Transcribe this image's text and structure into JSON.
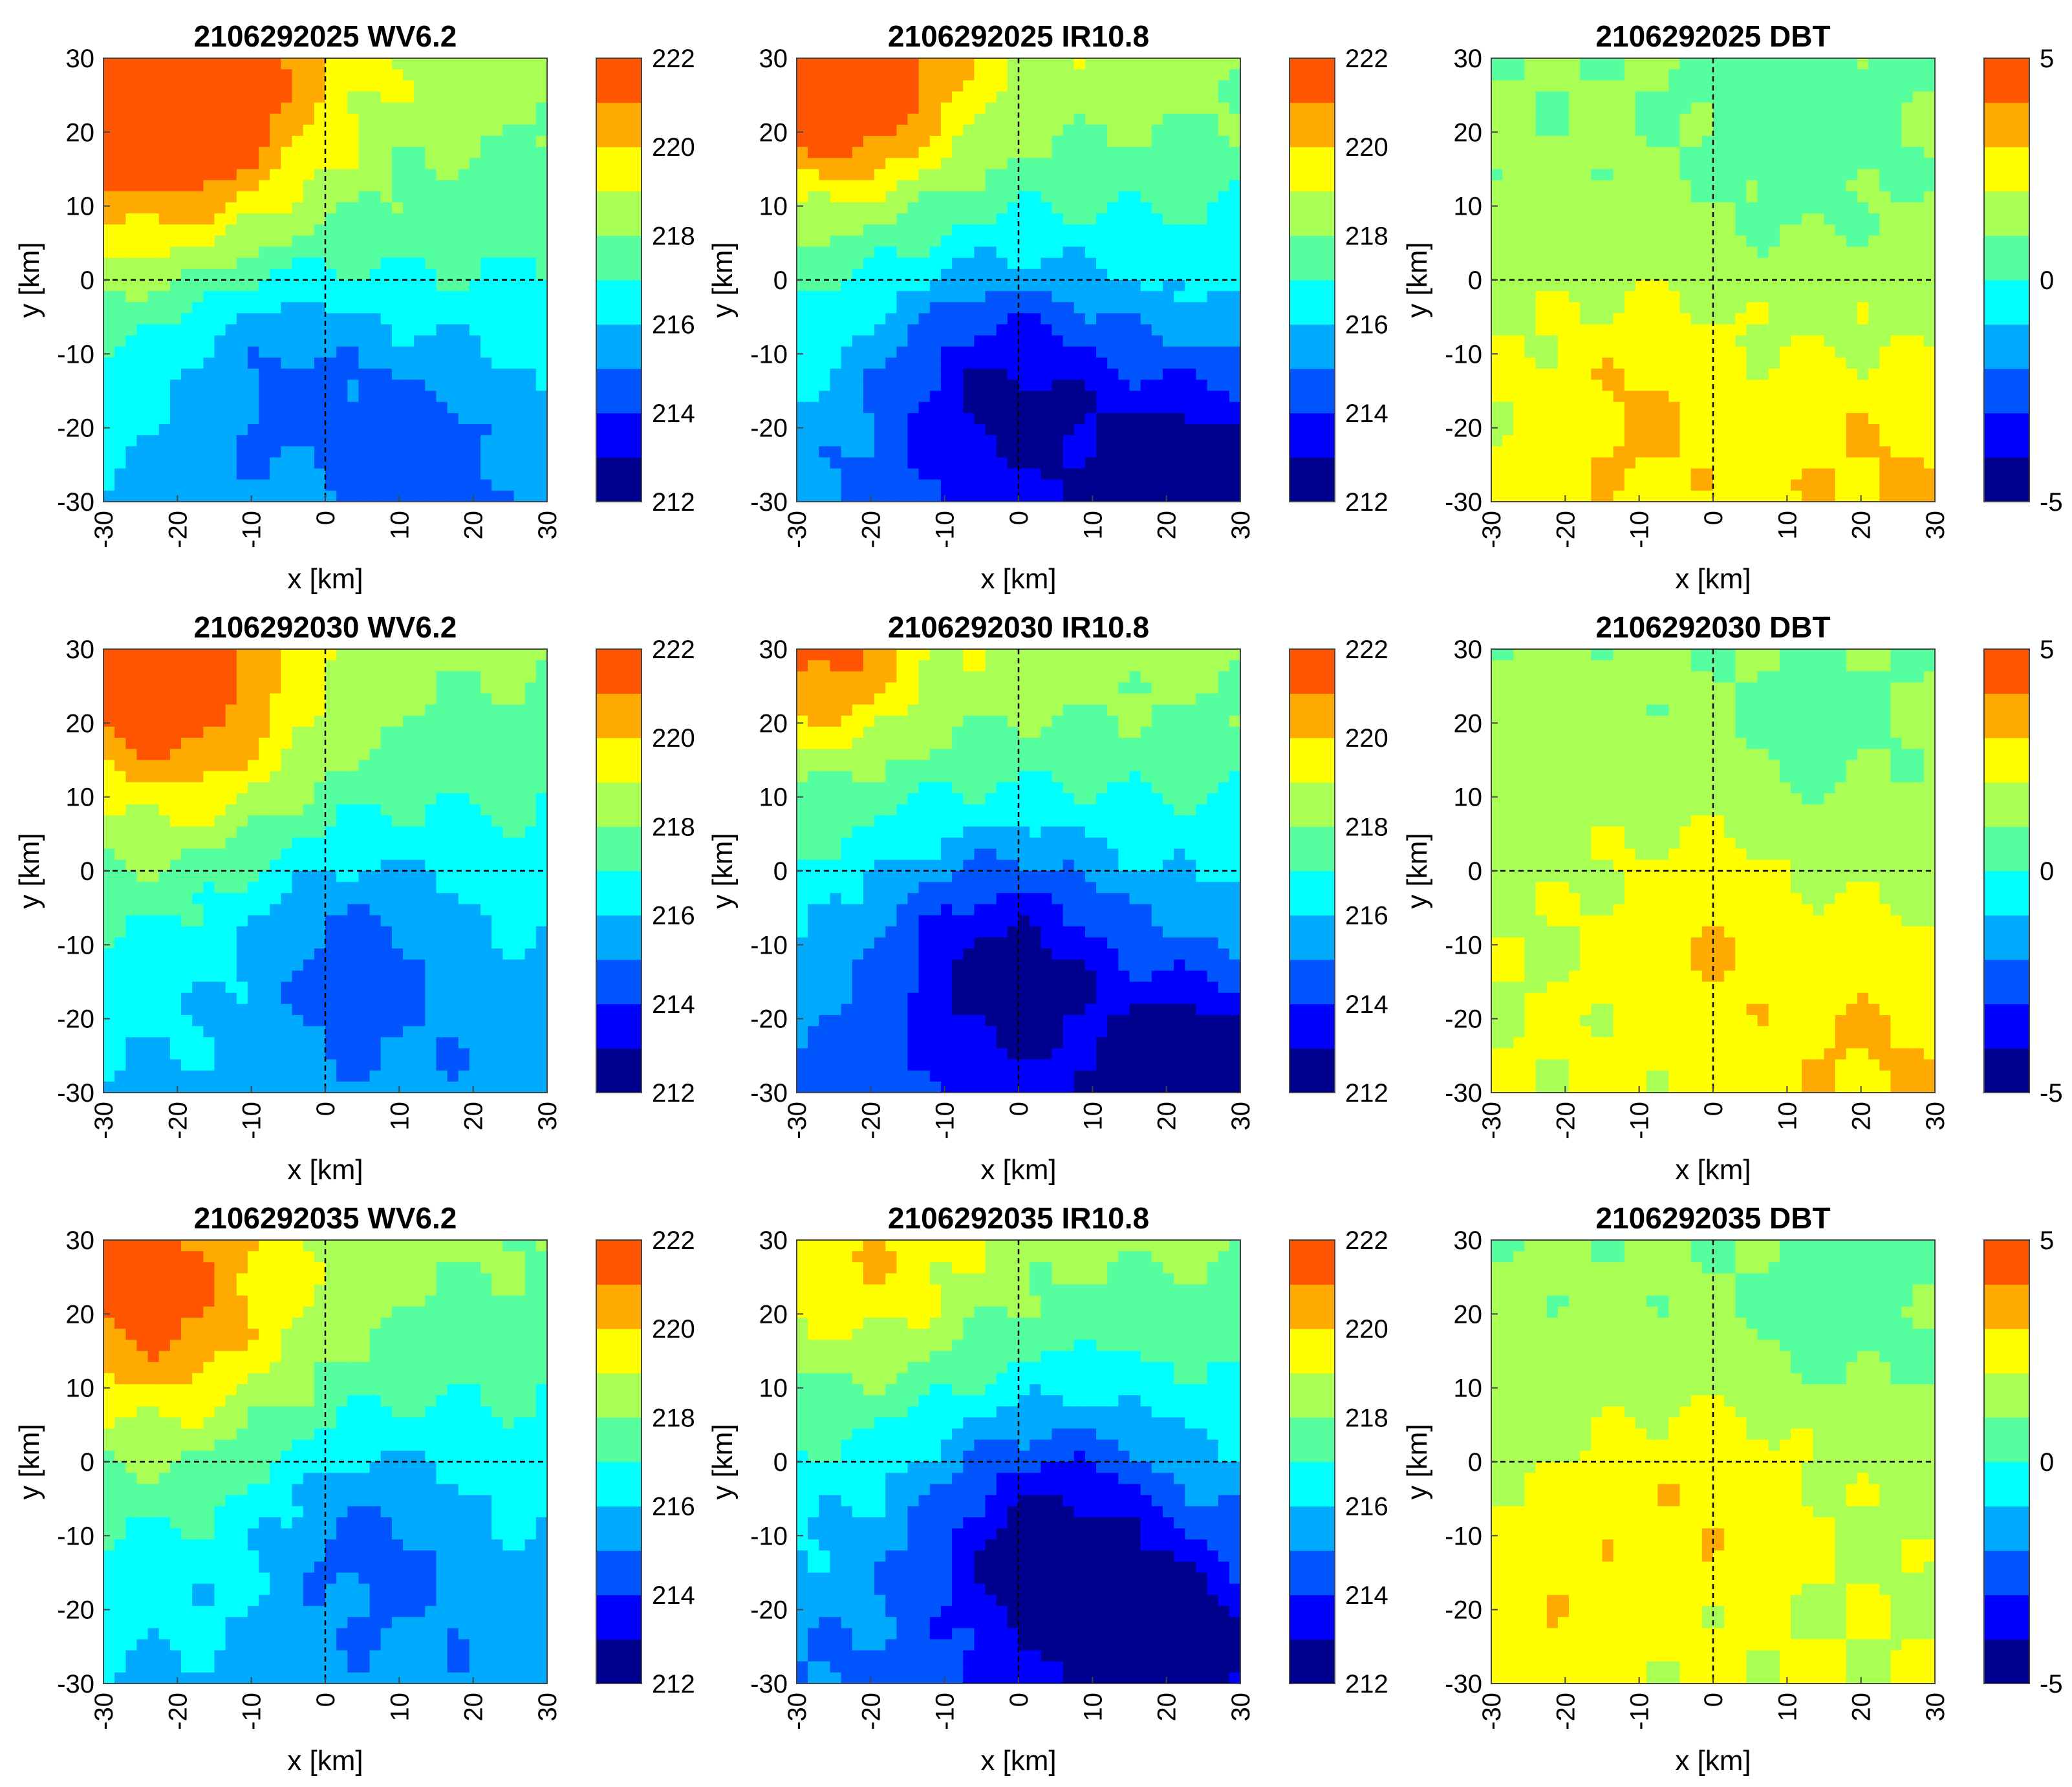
{
  "figure": {
    "description_rows": [
      "2106292025",
      "2106292030",
      "2106292035"
    ]
  },
  "chart_data": [
    {
      "type": "heatmap",
      "title": "2106292025 WV6.2",
      "xlabel": "x [km]",
      "ylabel": "y [km]",
      "xlim": [
        -30,
        30
      ],
      "ylim": [
        -30,
        30
      ],
      "xticks": [
        "-30",
        "-20",
        "-10",
        "0",
        "10",
        "20",
        "30"
      ],
      "yticks": [
        "30",
        "20",
        "10",
        "0",
        "-10",
        "-20",
        "-30"
      ],
      "colorbar": {
        "min": 212,
        "max": 222,
        "ticks": [
          "222",
          "220",
          "218",
          "216",
          "214",
          "212"
        ]
      },
      "field": {
        "base": 217.2,
        "ygrad": 0.055,
        "xgrad": -0.012,
        "blobs": [
          [
            -22,
            24,
            14,
            4.5
          ],
          [
            -6,
            -12,
            11,
            -1.8
          ],
          [
            14,
            -20,
            8,
            -1.2
          ]
        ]
      }
    },
    {
      "type": "heatmap",
      "title": "2106292025 IR10.8",
      "xlabel": "x [km]",
      "ylabel": "y [km]",
      "xlim": [
        -30,
        30
      ],
      "ylim": [
        -30,
        30
      ],
      "xticks": [
        "-30",
        "-20",
        "-10",
        "0",
        "10",
        "20",
        "30"
      ],
      "yticks": [
        "30",
        "20",
        "10",
        "0",
        "-10",
        "-20",
        "-30"
      ],
      "colorbar": {
        "min": 212,
        "max": 222,
        "ticks": [
          "222",
          "220",
          "218",
          "216",
          "214",
          "212"
        ]
      },
      "field": {
        "base": 216.8,
        "ygrad": 0.07,
        "xgrad": -0.015,
        "blobs": [
          [
            -24,
            26,
            10,
            4
          ],
          [
            -2,
            -14,
            12,
            -3
          ],
          [
            24,
            -26,
            10,
            -2.5
          ]
        ]
      }
    },
    {
      "type": "heatmap",
      "title": "2106292025 DBT",
      "xlabel": "x [km]",
      "ylabel": "y [km]",
      "xlim": [
        -30,
        30
      ],
      "ylim": [
        -30,
        30
      ],
      "xticks": [
        "-30",
        "-20",
        "-10",
        "0",
        "10",
        "20",
        "30"
      ],
      "yticks": [
        "30",
        "20",
        "10",
        "0",
        "-10",
        "-20",
        "-30"
      ],
      "colorbar": {
        "min": -5,
        "max": 5,
        "ticks": [
          "5",
          "0",
          "-5"
        ]
      },
      "field": {
        "base": 1.6,
        "ygrad": -0.02,
        "xgrad": 0,
        "blobs": [
          [
            -10,
            -18,
            10,
            1.2
          ],
          [
            22,
            -26,
            10,
            1.0
          ],
          [
            12,
            18,
            10,
            -0.9
          ]
        ]
      }
    },
    {
      "type": "heatmap",
      "title": "2106292030 WV6.2",
      "xlabel": "x [km]",
      "ylabel": "y [km]",
      "xlim": [
        -30,
        30
      ],
      "ylim": [
        -30,
        30
      ],
      "xticks": [
        "-30",
        "-20",
        "-10",
        "0",
        "10",
        "20",
        "30"
      ],
      "yticks": [
        "30",
        "20",
        "10",
        "0",
        "-10",
        "-20",
        "-30"
      ],
      "colorbar": {
        "min": 212,
        "max": 222,
        "ticks": [
          "222",
          "220",
          "218",
          "216",
          "214",
          "212"
        ]
      },
      "field": {
        "base": 217.0,
        "ygrad": 0.05,
        "xgrad": -0.012,
        "blobs": [
          [
            -20,
            22,
            12,
            3.2
          ],
          [
            4,
            -10,
            11,
            -1.8
          ],
          [
            -24,
            30,
            6,
            2.0
          ]
        ]
      }
    },
    {
      "type": "heatmap",
      "title": "2106292030 IR10.8",
      "xlabel": "x [km]",
      "ylabel": "y [km]",
      "xlim": [
        -30,
        30
      ],
      "ylim": [
        -30,
        30
      ],
      "xticks": [
        "-30",
        "-20",
        "-10",
        "0",
        "10",
        "20",
        "30"
      ],
      "yticks": [
        "30",
        "20",
        "10",
        "0",
        "-10",
        "-20",
        "-30"
      ],
      "colorbar": {
        "min": 212,
        "max": 222,
        "ticks": [
          "222",
          "220",
          "218",
          "216",
          "214",
          "212"
        ]
      },
      "field": {
        "base": 216.6,
        "ygrad": 0.07,
        "xgrad": -0.01,
        "blobs": [
          [
            -26,
            28,
            8,
            2.5
          ],
          [
            -2,
            -12,
            12,
            -3.2
          ],
          [
            24,
            -26,
            9,
            -2.5
          ]
        ]
      }
    },
    {
      "type": "heatmap",
      "title": "2106292030 DBT",
      "xlabel": "x [km]",
      "ylabel": "y [km]",
      "xlim": [
        -30,
        30
      ],
      "ylim": [
        -30,
        30
      ],
      "xticks": [
        "-30",
        "-20",
        "-10",
        "0",
        "10",
        "20",
        "30"
      ],
      "yticks": [
        "30",
        "20",
        "10",
        "0",
        "-10",
        "-20",
        "-30"
      ],
      "colorbar": {
        "min": -5,
        "max": 5,
        "ticks": [
          "5",
          "0",
          "-5"
        ]
      },
      "field": {
        "base": 1.7,
        "ygrad": -0.015,
        "xgrad": 0,
        "blobs": [
          [
            0,
            -8,
            10,
            1.1
          ],
          [
            22,
            -24,
            10,
            1.0
          ],
          [
            14,
            18,
            10,
            -0.8
          ]
        ]
      }
    },
    {
      "type": "heatmap",
      "title": "2106292035 WV6.2",
      "xlabel": "x [km]",
      "ylabel": "y [km]",
      "xlim": [
        -30,
        30
      ],
      "ylim": [
        -30,
        30
      ],
      "xticks": [
        "-30",
        "-20",
        "-10",
        "0",
        "10",
        "20",
        "30"
      ],
      "yticks": [
        "30",
        "20",
        "10",
        "0",
        "-10",
        "-20",
        "-30"
      ],
      "colorbar": {
        "min": 212,
        "max": 222,
        "ticks": [
          "222",
          "220",
          "218",
          "216",
          "214",
          "212"
        ]
      },
      "field": {
        "base": 217.0,
        "ygrad": 0.05,
        "xgrad": -0.015,
        "blobs": [
          [
            -22,
            20,
            12,
            3.0
          ],
          [
            6,
            -10,
            10,
            -1.7
          ],
          [
            -28,
            30,
            4,
            2.0
          ]
        ]
      }
    },
    {
      "type": "heatmap",
      "title": "2106292035 IR10.8",
      "xlabel": "x [km]",
      "ylabel": "y [km]",
      "xlim": [
        -30,
        30
      ],
      "ylim": [
        -30,
        30
      ],
      "xticks": [
        "-30",
        "-20",
        "-10",
        "0",
        "10",
        "20",
        "30"
      ],
      "yticks": [
        "30",
        "20",
        "10",
        "0",
        "-10",
        "-20",
        "-30"
      ],
      "colorbar": {
        "min": 212,
        "max": 222,
        "ticks": [
          "222",
          "220",
          "218",
          "216",
          "214",
          "212"
        ]
      },
      "field": {
        "base": 216.5,
        "ygrad": 0.065,
        "xgrad": -0.01,
        "blobs": [
          [
            4,
            -10,
            12,
            -3.4
          ],
          [
            22,
            -24,
            10,
            -2.0
          ],
          [
            -20,
            24,
            10,
            1.5
          ]
        ]
      }
    },
    {
      "type": "heatmap",
      "title": "2106292035 DBT",
      "xlabel": "x [km]",
      "ylabel": "y [km]",
      "xlim": [
        -30,
        30
      ],
      "ylim": [
        -30,
        30
      ],
      "xticks": [
        "-30",
        "-20",
        "-10",
        "0",
        "10",
        "20",
        "30"
      ],
      "yticks": [
        "30",
        "20",
        "10",
        "0",
        "-10",
        "-20",
        "-30"
      ],
      "colorbar": {
        "min": -5,
        "max": 5,
        "ticks": [
          "5",
          "0",
          "-5"
        ]
      },
      "field": {
        "base": 1.6,
        "ygrad": -0.015,
        "xgrad": 0,
        "blobs": [
          [
            0,
            -4,
            10,
            1.2
          ],
          [
            -22,
            -16,
            10,
            0.9
          ],
          [
            18,
            20,
            10,
            -0.8
          ]
        ]
      }
    }
  ],
  "colormap": [
    "#00008f",
    "#0000ff",
    "#0055ff",
    "#00aaff",
    "#00ffff",
    "#55ff9f",
    "#aaff55",
    "#ffff00",
    "#ffaa00",
    "#ff5500"
  ]
}
